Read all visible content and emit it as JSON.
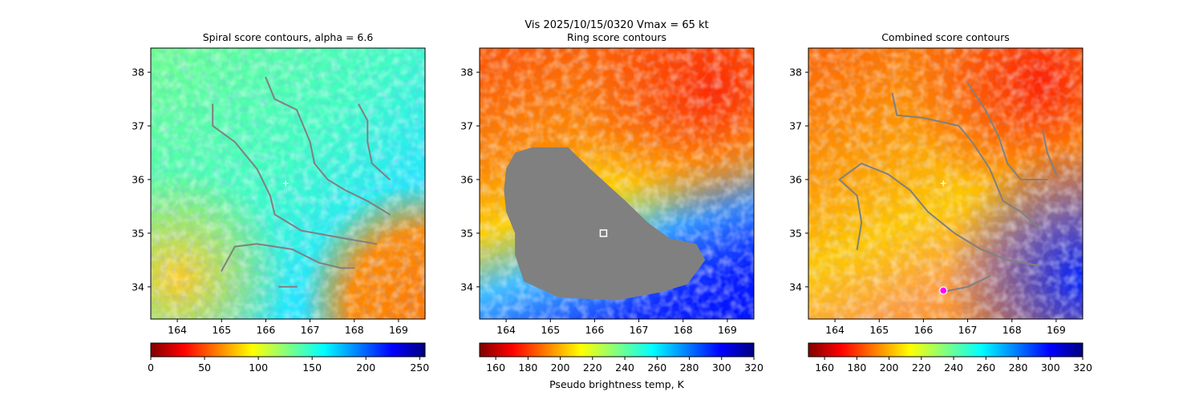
{
  "figure": {
    "suptitle_line1": "Vis  2025/10/15/0320    Vmax = 65 kt"
  },
  "colors": {
    "contour": "#808080",
    "mask": "#808080",
    "center_marker": "#ffffff",
    "ring_marker": "#ffffff",
    "combined_marker": "#ff00ff"
  },
  "chart_data": [
    {
      "type": "heatmap",
      "title": "Spiral score contours, alpha =  6.6",
      "xlim": [
        163.4,
        169.6
      ],
      "ylim": [
        33.4,
        38.45
      ],
      "xticks": [
        "164",
        "165",
        "166",
        "167",
        "168",
        "169"
      ],
      "yticks": [
        "34",
        "35",
        "36",
        "37",
        "38"
      ],
      "colormap": "jet_r",
      "colorbar": {
        "range": [
          0,
          255
        ],
        "ticks": [
          "0",
          "50",
          "100",
          "150",
          "200",
          "250"
        ],
        "label": ""
      },
      "center": [
        166.45,
        35.93
      ],
      "contours": [
        [
          [
            166.0,
            37.9
          ],
          [
            166.2,
            37.5
          ],
          [
            166.7,
            37.3
          ],
          [
            167.0,
            36.7
          ],
          [
            167.1,
            36.3
          ],
          [
            167.4,
            36.0
          ],
          [
            167.8,
            35.8
          ],
          [
            168.3,
            35.6
          ],
          [
            168.8,
            35.35
          ]
        ],
        [
          [
            164.8,
            37.4
          ],
          [
            164.8,
            37.0
          ],
          [
            165.3,
            36.7
          ],
          [
            165.8,
            36.2
          ],
          [
            166.1,
            35.7
          ],
          [
            166.2,
            35.35
          ],
          [
            166.8,
            35.05
          ],
          [
            167.8,
            34.9
          ],
          [
            168.5,
            34.8
          ]
        ],
        [
          [
            168.1,
            37.4
          ],
          [
            168.3,
            37.1
          ],
          [
            168.3,
            36.7
          ],
          [
            168.4,
            36.3
          ],
          [
            168.8,
            36.0
          ]
        ],
        [
          [
            165.0,
            34.3
          ],
          [
            165.3,
            34.75
          ],
          [
            165.8,
            34.8
          ],
          [
            166.6,
            34.7
          ],
          [
            167.2,
            34.45
          ],
          [
            167.7,
            34.35
          ],
          [
            168.0,
            34.35
          ]
        ],
        [
          [
            166.3,
            34.0
          ],
          [
            166.7,
            34.0
          ]
        ]
      ]
    },
    {
      "type": "heatmap",
      "title": "Ring score contours",
      "xlim": [
        163.4,
        169.6
      ],
      "ylim": [
        33.4,
        38.45
      ],
      "xticks": [
        "164",
        "165",
        "166",
        "167",
        "168",
        "169"
      ],
      "yticks": [
        "34",
        "35",
        "36",
        "37",
        "38"
      ],
      "colormap": "jet_r",
      "colorbar": {
        "range": [
          150,
          320
        ],
        "ticks": [
          "160",
          "180",
          "200",
          "220",
          "240",
          "260",
          "280",
          "300",
          "320"
        ],
        "label": "Pseudo brightness temp, K"
      },
      "ring_center": [
        166.2,
        35.0
      ],
      "masked_region": [
        [
          164.6,
          36.6
        ],
        [
          165.4,
          36.6
        ],
        [
          165.9,
          36.2
        ],
        [
          166.3,
          35.9
        ],
        [
          166.7,
          35.6
        ],
        [
          167.2,
          35.2
        ],
        [
          167.7,
          34.9
        ],
        [
          168.3,
          34.8
        ],
        [
          168.5,
          34.5
        ],
        [
          168.1,
          34.05
        ],
        [
          167.5,
          33.9
        ],
        [
          166.5,
          33.75
        ],
        [
          165.2,
          33.8
        ],
        [
          164.4,
          34.1
        ],
        [
          164.2,
          34.6
        ],
        [
          164.2,
          35.0
        ],
        [
          164.0,
          35.4
        ],
        [
          163.95,
          35.8
        ],
        [
          164.0,
          36.2
        ],
        [
          164.2,
          36.5
        ]
      ]
    },
    {
      "type": "heatmap",
      "title": "Combined score contours",
      "xlim": [
        163.4,
        169.6
      ],
      "ylim": [
        33.4,
        38.45
      ],
      "xticks": [
        "164",
        "165",
        "166",
        "167",
        "168",
        "169"
      ],
      "yticks": [
        "34",
        "35",
        "36",
        "37",
        "38"
      ],
      "colormap": "jet_r",
      "colorbar": {
        "range": [
          150,
          320
        ],
        "ticks": [
          "160",
          "180",
          "200",
          "220",
          "240",
          "260",
          "280",
          "300",
          "320"
        ],
        "label": ""
      },
      "center": [
        166.45,
        35.93
      ],
      "combined_center": [
        166.45,
        33.93
      ],
      "contours": [
        [
          [
            165.3,
            37.6
          ],
          [
            165.4,
            37.2
          ],
          [
            166.0,
            37.15
          ],
          [
            166.8,
            37.0
          ],
          [
            167.1,
            36.7
          ],
          [
            167.5,
            36.2
          ],
          [
            167.8,
            35.6
          ],
          [
            168.2,
            35.4
          ],
          [
            168.6,
            35.1
          ]
        ],
        [
          [
            167.0,
            37.8
          ],
          [
            167.4,
            37.3
          ],
          [
            167.7,
            36.8
          ],
          [
            167.9,
            36.3
          ],
          [
            168.2,
            36.0
          ],
          [
            168.8,
            36.0
          ]
        ],
        [
          [
            168.7,
            36.9
          ],
          [
            168.8,
            36.5
          ],
          [
            169.0,
            36.1
          ]
        ],
        [
          [
            164.5,
            34.7
          ],
          [
            164.6,
            35.2
          ],
          [
            164.5,
            35.7
          ],
          [
            164.1,
            36.0
          ],
          [
            164.6,
            36.3
          ],
          [
            165.2,
            36.1
          ],
          [
            165.7,
            35.8
          ],
          [
            166.1,
            35.4
          ],
          [
            166.7,
            35.0
          ],
          [
            167.3,
            34.7
          ],
          [
            167.9,
            34.5
          ],
          [
            168.6,
            34.4
          ]
        ],
        [
          [
            166.4,
            33.9
          ],
          [
            167.0,
            34.0
          ],
          [
            167.5,
            34.2
          ]
        ]
      ]
    }
  ]
}
